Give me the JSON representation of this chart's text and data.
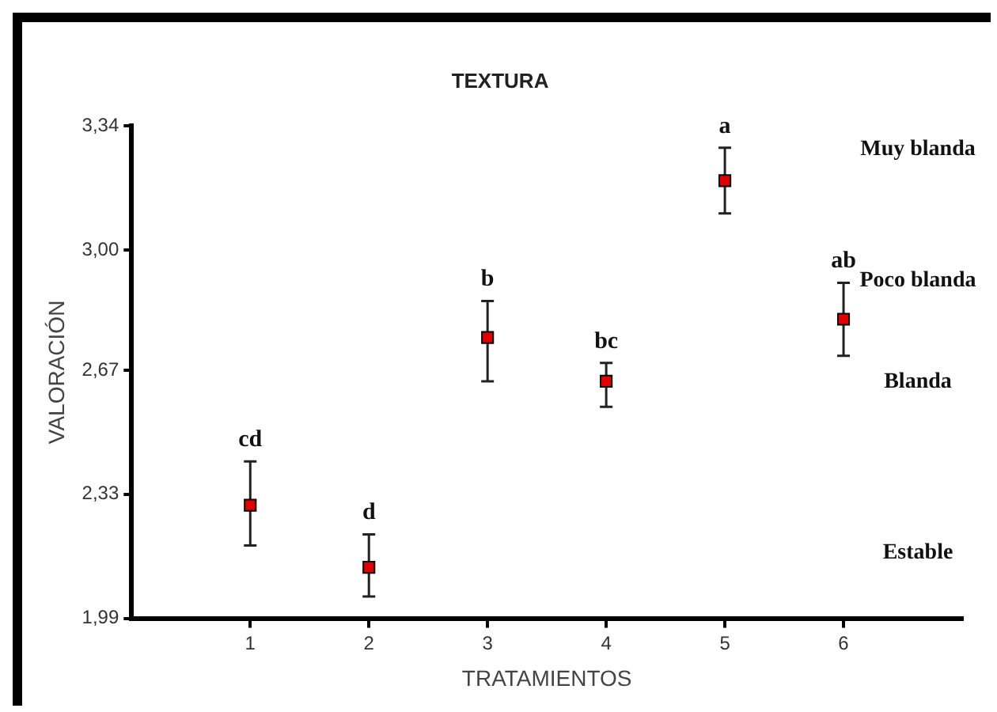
{
  "chart_data": {
    "type": "scatter",
    "title": "TEXTURA",
    "xlabel": "TRATAMIENTOS",
    "ylabel": "VALORACIÓN",
    "x": [
      1,
      2,
      3,
      4,
      5,
      6
    ],
    "series": [
      {
        "color": "#e00000",
        "values": [
          2.3,
          2.13,
          2.76,
          2.64,
          3.19,
          2.81
        ],
        "errors": [
          [
            2.19,
            2.42
          ],
          [
            2.05,
            2.22
          ],
          [
            2.64,
            2.86
          ],
          [
            2.57,
            2.69
          ],
          [
            3.1,
            3.28
          ],
          [
            2.71,
            2.91
          ]
        ]
      }
    ],
    "xlim": [
      0,
      7
    ],
    "xticks": [
      1,
      2,
      3,
      4,
      5,
      6
    ],
    "ylim": [
      1.99,
      3.34
    ],
    "yticks": [
      {
        "value": 1.99,
        "label": "1,99"
      },
      {
        "value": 2.33,
        "label": "2,33"
      },
      {
        "value": 2.67,
        "label": "2,67"
      },
      {
        "value": 3.0,
        "label": "3,00"
      },
      {
        "value": 3.34,
        "label": "3,34"
      }
    ],
    "marker": "square",
    "grid": false,
    "legend": false,
    "annotations": [
      {
        "text": "cd",
        "x": 1,
        "y": 2.3
      },
      {
        "text": "d",
        "x": 2,
        "y": 2.13
      },
      {
        "text": "b",
        "x": 3,
        "y": 2.76
      },
      {
        "text": "bc",
        "x": 4,
        "y": 2.64
      },
      {
        "text": "a",
        "x": 5,
        "y": 3.19
      },
      {
        "text": "ab",
        "x": 6,
        "y": 2.81
      },
      "Muy blanda",
      "Poco blanda",
      "Blanda",
      "Estable"
    ]
  }
}
